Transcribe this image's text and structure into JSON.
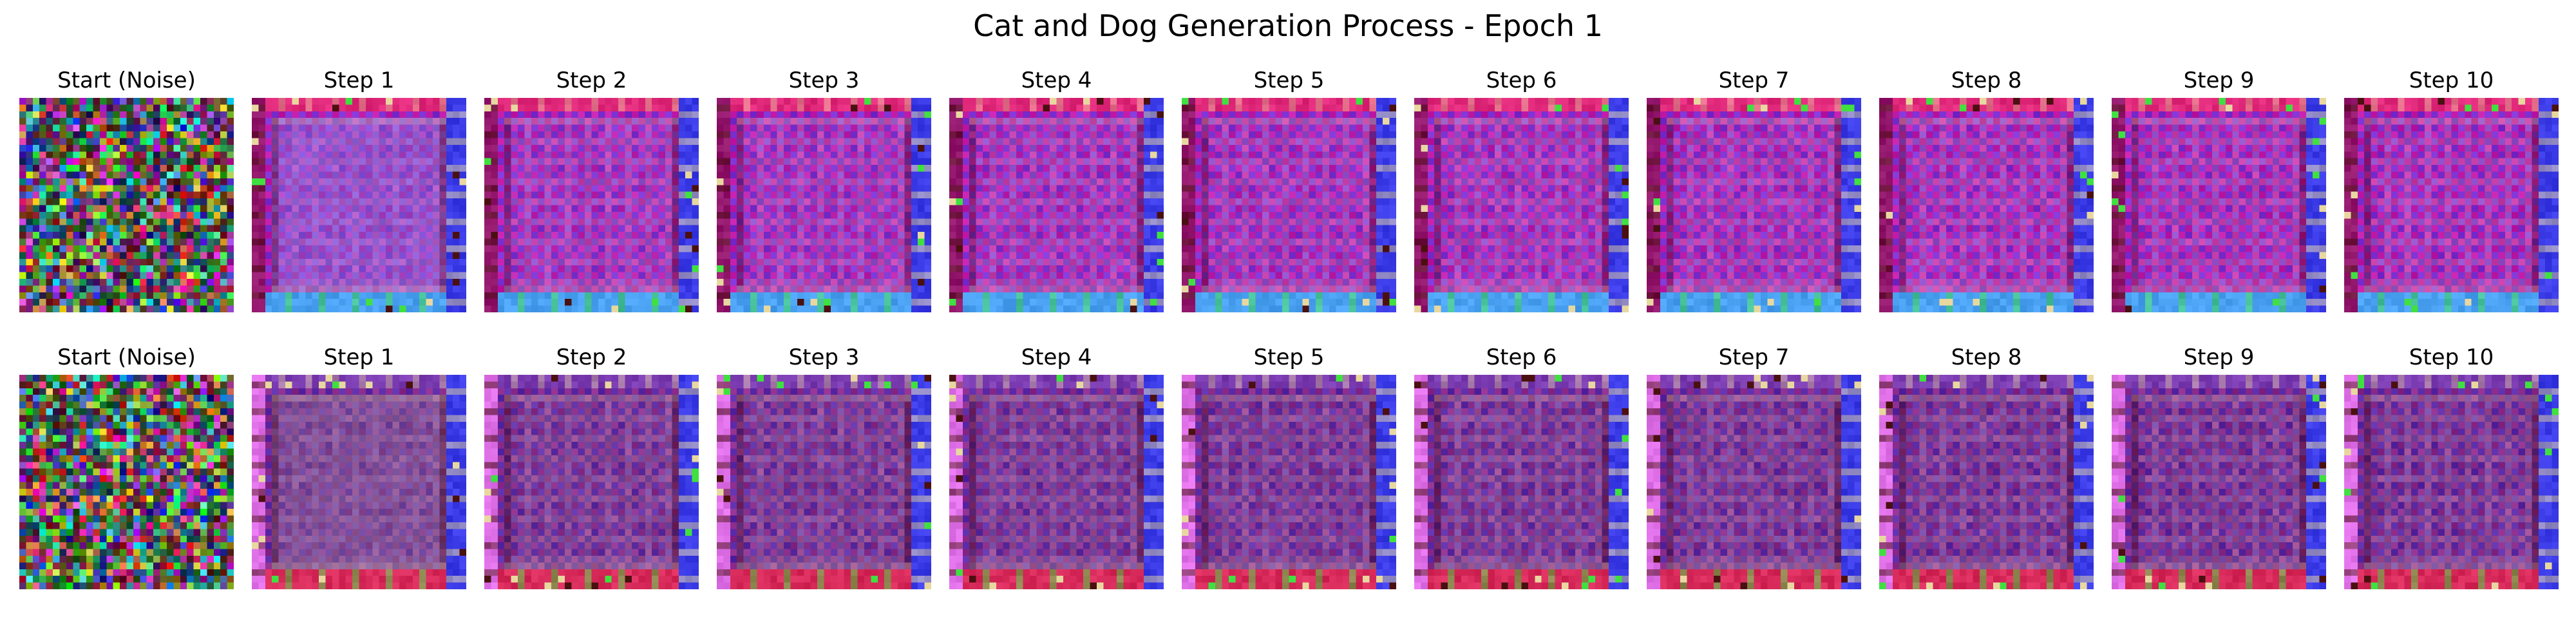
{
  "figure": {
    "title": "Cat and Dog Generation Process - Epoch 1"
  },
  "grid": {
    "rows": [
      {
        "panels": [
          {
            "title": "Start (Noise)",
            "kind": "noise"
          },
          {
            "title": "Step 1",
            "kind": "pattern"
          },
          {
            "title": "Step 2",
            "kind": "pattern"
          },
          {
            "title": "Step 3",
            "kind": "pattern"
          },
          {
            "title": "Step 4",
            "kind": "pattern"
          },
          {
            "title": "Step 5",
            "kind": "pattern"
          },
          {
            "title": "Step 6",
            "kind": "pattern"
          },
          {
            "title": "Step 7",
            "kind": "pattern"
          },
          {
            "title": "Step 8",
            "kind": "pattern"
          },
          {
            "title": "Step 9",
            "kind": "pattern"
          },
          {
            "title": "Step 10",
            "kind": "pattern"
          }
        ]
      },
      {
        "panels": [
          {
            "title": "Start (Noise)",
            "kind": "noise"
          },
          {
            "title": "Step 1",
            "kind": "pattern"
          },
          {
            "title": "Step 2",
            "kind": "pattern"
          },
          {
            "title": "Step 3",
            "kind": "pattern"
          },
          {
            "title": "Step 4",
            "kind": "pattern"
          },
          {
            "title": "Step 5",
            "kind": "pattern"
          },
          {
            "title": "Step 6",
            "kind": "pattern"
          },
          {
            "title": "Step 7",
            "kind": "pattern"
          },
          {
            "title": "Step 8",
            "kind": "pattern"
          },
          {
            "title": "Step 9",
            "kind": "pattern"
          },
          {
            "title": "Step 10",
            "kind": "pattern"
          }
        ]
      }
    ]
  },
  "palette": {
    "cat_base": "#c21aa8",
    "cat_check": "#7a2fd0",
    "cat_inner_early": "#8a78e0",
    "cat_border_top": "#e0287a",
    "cat_border_bottom": "#4aa0f0",
    "cat_border_right": "#3a3ae6",
    "dog_base": "#8a2a8a",
    "dog_check": "#5a2aa6",
    "dog_inner_early": "#8a6a9a",
    "dog_border_top": "#7a3ab0",
    "dog_border_bottom": "#d82a5a",
    "dog_border_left": "#e070e8",
    "dog_border_right": "#3a3ae6",
    "accent_green": "#40e040",
    "accent_cream": "#e8d8a0",
    "accent_dark": "#4a1010"
  }
}
